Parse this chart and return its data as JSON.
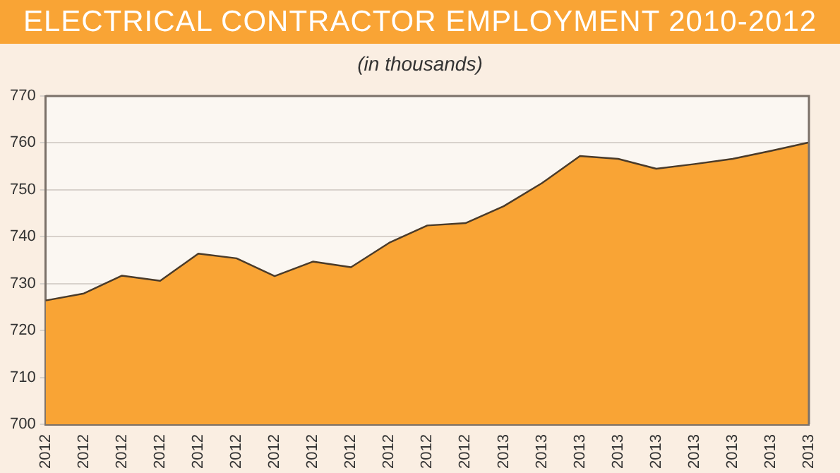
{
  "chart_data": {
    "type": "area",
    "title": "ELECTRICAL CONTRACTOR EMPLOYMENT 2010-2012",
    "subtitle": "(in thousands)",
    "categories": [
      "2012",
      "2012",
      "2012",
      "2012",
      "2012",
      "2012",
      "2012",
      "2012",
      "2012",
      "2012",
      "2012",
      "2012",
      "2013",
      "2013",
      "2013",
      "2013",
      "2013",
      "2013",
      "2013",
      "2013",
      "2013"
    ],
    "series": [
      {
        "color": "#f9a435",
        "values": [
          726.4,
          727.9,
          731.7,
          730.6,
          736.4,
          735.4,
          731.6,
          734.7,
          733.5,
          738.7,
          742.4,
          742.9,
          746.5,
          751.4,
          757.2,
          756.6,
          754.5,
          755.5,
          756.6,
          758.3,
          760.1
        ]
      }
    ],
    "ylim": [
      700,
      770
    ],
    "yticks": [
      700,
      710,
      720,
      730,
      740,
      750,
      760,
      770
    ],
    "grid": "y",
    "legend": false
  }
}
